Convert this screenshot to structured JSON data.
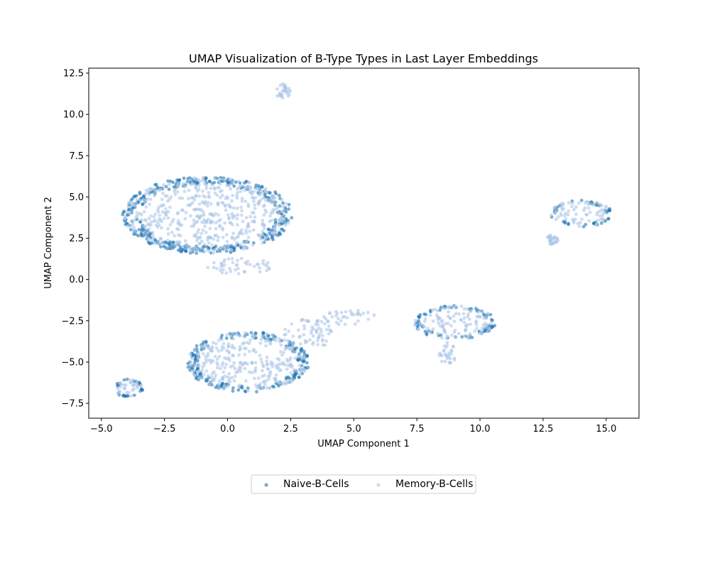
{
  "chart_data": {
    "type": "scatter",
    "title": "UMAP Visualization of B-Type Types in Last Layer Embeddings",
    "xlabel": "UMAP Component 1",
    "ylabel": "UMAP Component 2",
    "xlim": [
      -5.5,
      16.3
    ],
    "ylim": [
      -8.4,
      12.8
    ],
    "xticks": [
      -5.0,
      -2.5,
      0.0,
      2.5,
      5.0,
      7.5,
      10.0,
      12.5,
      15.0
    ],
    "xtick_labels": [
      "−5.0",
      "−2.5",
      "0.0",
      "2.5",
      "5.0",
      "7.5",
      "10.0",
      "12.5",
      "15.0"
    ],
    "yticks": [
      -7.5,
      -5.0,
      -2.5,
      0.0,
      2.5,
      5.0,
      7.5,
      10.0,
      12.5
    ],
    "ytick_labels": [
      "−7.5",
      "−5.0",
      "−2.5",
      "0.0",
      "2.5",
      "5.0",
      "7.5",
      "10.0",
      "12.5"
    ],
    "grid": false,
    "legend_position": "bottom-center",
    "series": [
      {
        "name": "Naive-B-Cells",
        "color": "#1f77b4",
        "alpha": 0.6,
        "clusters": [
          {
            "cx": -0.8,
            "cy": 3.9,
            "rx": 3.3,
            "ry": 2.3
          },
          {
            "cx": 0.8,
            "cy": -5.0,
            "rx": 2.4,
            "ry": 1.8
          },
          {
            "cx": 9.0,
            "cy": -2.6,
            "rx": 1.6,
            "ry": 1.0
          },
          {
            "cx": 14.0,
            "cy": 4.0,
            "rx": 1.2,
            "ry": 0.8
          },
          {
            "cx": -3.9,
            "cy": -6.6,
            "rx": 0.55,
            "ry": 0.55
          }
        ]
      },
      {
        "name": "Memory-B-Cells",
        "color": "#aec7e8",
        "alpha": 0.6,
        "clusters": [
          {
            "cx": -0.8,
            "cy": 3.9,
            "rx": 3.3,
            "ry": 2.3
          },
          {
            "cx": 0.8,
            "cy": -5.0,
            "rx": 2.4,
            "ry": 1.8
          },
          {
            "cx": 3.2,
            "cy": -3.3,
            "rx": 1.0,
            "ry": 0.9
          },
          {
            "cx": 4.8,
            "cy": -2.3,
            "rx": 1.1,
            "ry": 0.45
          },
          {
            "cx": 0.5,
            "cy": 0.8,
            "rx": 1.3,
            "ry": 0.5
          },
          {
            "cx": 9.0,
            "cy": -2.6,
            "rx": 1.6,
            "ry": 1.0
          },
          {
            "cx": 8.7,
            "cy": -4.5,
            "rx": 0.35,
            "ry": 0.7
          },
          {
            "cx": 14.0,
            "cy": 4.0,
            "rx": 1.2,
            "ry": 0.8
          },
          {
            "cx": 12.85,
            "cy": 2.4,
            "rx": 0.25,
            "ry": 0.3
          },
          {
            "cx": -3.9,
            "cy": -6.6,
            "rx": 0.55,
            "ry": 0.55
          },
          {
            "cx": 2.2,
            "cy": 11.4,
            "rx": 0.3,
            "ry": 0.45
          }
        ]
      }
    ]
  }
}
